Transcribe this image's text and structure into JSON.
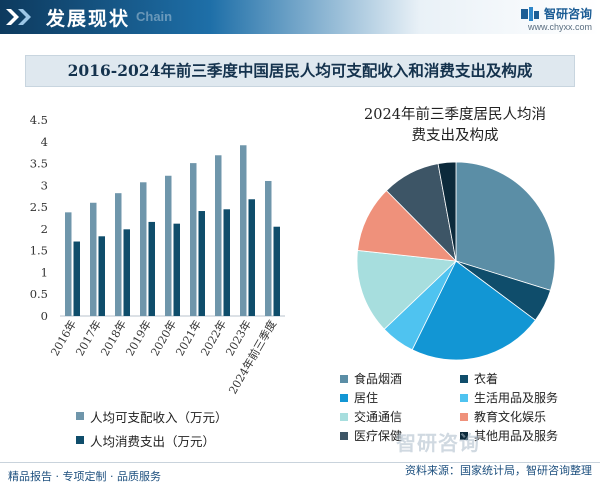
{
  "header": {
    "title": "发展现状",
    "subtitle": "Chain",
    "brand_name": "智研咨询",
    "brand_url": "www.chyxx.com",
    "colors": {
      "band_dark": "#0d3a5e",
      "band_mid": "#1e6fa8"
    }
  },
  "main_title": "2016-2024年前三季度中国居民人均可支配收入和消费支出及构成",
  "chart_data": [
    {
      "type": "bar",
      "categories": [
        "2016年",
        "2017年",
        "2018年",
        "2019年",
        "2020年",
        "2021年",
        "2022年",
        "2023年",
        "2024年前三季度"
      ],
      "series": [
        {
          "name": "人均可支配收入（万元）",
          "color": "#6f96ab",
          "values": [
            2.38,
            2.6,
            2.82,
            3.07,
            3.22,
            3.51,
            3.69,
            3.92,
            3.1
          ]
        },
        {
          "name": "人均消费支出（万元）",
          "color": "#0f4d6b",
          "values": [
            1.71,
            1.83,
            1.99,
            2.16,
            2.12,
            2.41,
            2.45,
            2.68,
            2.05
          ]
        }
      ],
      "yticks": [
        "0",
        "0.5",
        "1",
        "1.5",
        "2",
        "2.5",
        "3",
        "3.5",
        "4",
        "4.5"
      ],
      "ylim": [
        0,
        4.5
      ],
      "grid": false,
      "legend": "bottom-left"
    },
    {
      "type": "pie",
      "title": "2024年前三季度居民人均消费支出及构成",
      "title_lines": [
        "2024年前三季度居民人均消",
        "费支出及构成"
      ],
      "slices": [
        {
          "label": "食品烟酒",
          "value": 29.8,
          "color": "#5b8ea6"
        },
        {
          "label": "衣着",
          "value": 5.4,
          "color": "#0f4d6b"
        },
        {
          "label": "居住",
          "value": 22.1,
          "color": "#1296d4"
        },
        {
          "label": "生活用品及服务",
          "value": 5.6,
          "color": "#4fc3f0"
        },
        {
          "label": "交通通信",
          "value": 13.8,
          "color": "#a7dede"
        },
        {
          "label": "教育文化娱乐",
          "value": 10.9,
          "color": "#ef917b"
        },
        {
          "label": "医疗保健",
          "value": 9.5,
          "color": "#3d5566"
        },
        {
          "label": "其他用品及服务",
          "value": 2.9,
          "color": "#0c2a3b"
        }
      ],
      "start_angle_deg": 0,
      "legend": "bottom"
    }
  ],
  "footer": {
    "left": "精品报告 · 专项定制 · 品质服务",
    "right": "资料来源：国家统计局，智研咨询整理",
    "watermark": "智研咨询"
  }
}
